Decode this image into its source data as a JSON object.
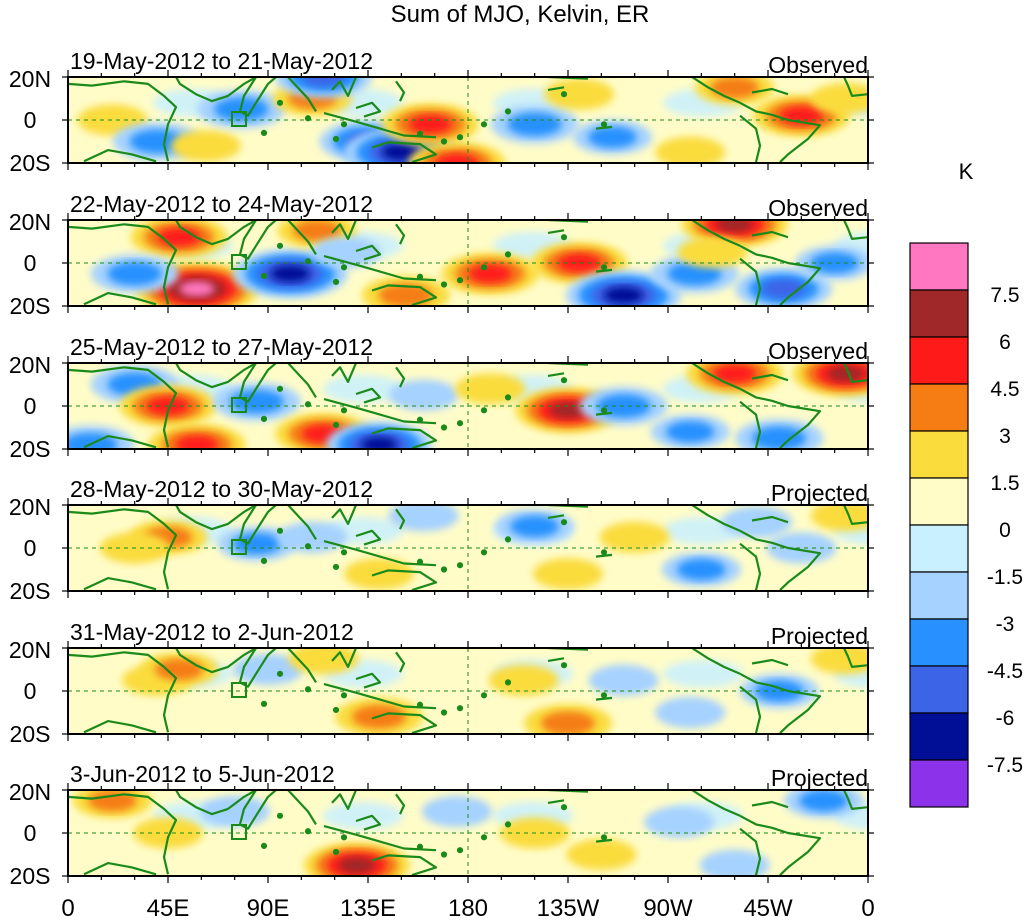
{
  "title": "Sum of MJO, Kelvin, ER",
  "colors": {
    "land": "#1a8a1a",
    "frame": "#000000",
    "refline": "#1a8a1a"
  },
  "axes": {
    "lat_ticks": [
      "20N",
      "0",
      "20S"
    ],
    "lon_ticks": [
      "0",
      "45E",
      "90E",
      "135E",
      "180",
      "135W",
      "90W",
      "45W",
      "0"
    ]
  },
  "panels": [
    {
      "date": "19-May-2012 to 21-May-2012",
      "status": "Observed"
    },
    {
      "date": "22-May-2012 to 24-May-2012",
      "status": "Observed"
    },
    {
      "date": "25-May-2012 to 27-May-2012",
      "status": "Observed"
    },
    {
      "date": "28-May-2012 to 30-May-2012",
      "status": "Projected"
    },
    {
      "date": "31-May-2012 to 2-Jun-2012",
      "status": "Projected"
    },
    {
      "date": "3-Jun-2012 to 5-Jun-2012",
      "status": "Projected"
    }
  ],
  "colorbar": {
    "unit": "K",
    "labels": [
      "7.5",
      "6",
      "4.5",
      "3",
      "1.5",
      "0",
      "-1.5",
      "-3",
      "-4.5",
      "-6",
      "-7.5"
    ],
    "colors": [
      "#ff77c0",
      "#a02828",
      "#ff1a1a",
      "#f57d14",
      "#fadc3c",
      "#fffcc8",
      "#c8f0ff",
      "#a6d2ff",
      "#2891ff",
      "#3c64e6",
      "#000f96",
      "#8c32eb"
    ]
  },
  "chart_data": {
    "type": "heatmap",
    "title": "Sum of MJO, Kelvin, ER",
    "unit": "K",
    "x_extent": [
      "0",
      "0"
    ],
    "y_extent": [
      "20S",
      "20N"
    ],
    "levels": [
      -7.5,
      -6,
      -4.5,
      -3,
      -1.5,
      0,
      1.5,
      3,
      4.5,
      6,
      7.5
    ],
    "anomalies": [
      [
        {
          "lon": 20,
          "lat": 0,
          "v": 2
        },
        {
          "lon": 40,
          "lat": -10,
          "v": -4
        },
        {
          "lon": 62,
          "lat": -12,
          "v": 2
        },
        {
          "lon": 78,
          "lat": 5,
          "v": -4
        },
        {
          "lon": 110,
          "lat": 10,
          "v": 3
        },
        {
          "lon": 115,
          "lat": 20,
          "v": -5
        },
        {
          "lon": 135,
          "lat": -10,
          "v": -5
        },
        {
          "lon": 150,
          "lat": -15,
          "v": -7
        },
        {
          "lon": 175,
          "lat": -20,
          "v": 5
        },
        {
          "lon": 163,
          "lat": -2,
          "v": 5
        },
        {
          "lon": 210,
          "lat": -2,
          "v": -4
        },
        {
          "lon": 230,
          "lat": 12,
          "v": 2
        },
        {
          "lon": 245,
          "lat": -8,
          "v": -3
        },
        {
          "lon": 300,
          "lat": 15,
          "v": 3
        },
        {
          "lon": 330,
          "lat": 2,
          "v": 5
        },
        {
          "lon": 350,
          "lat": 10,
          "v": 2
        },
        {
          "lon": 280,
          "lat": -15,
          "v": 2
        }
      ],
      [
        {
          "lon": 50,
          "lat": 12,
          "v": 5
        },
        {
          "lon": 58,
          "lat": -12,
          "v": 8
        },
        {
          "lon": 30,
          "lat": -5,
          "v": -4
        },
        {
          "lon": 100,
          "lat": -5,
          "v": -7
        },
        {
          "lon": 112,
          "lat": 15,
          "v": 3
        },
        {
          "lon": 125,
          "lat": 5,
          "v": -2
        },
        {
          "lon": 152,
          "lat": -15,
          "v": 4
        },
        {
          "lon": 190,
          "lat": -5,
          "v": 5
        },
        {
          "lon": 230,
          "lat": 0,
          "v": 5
        },
        {
          "lon": 250,
          "lat": -15,
          "v": -7
        },
        {
          "lon": 282,
          "lat": -5,
          "v": -4
        },
        {
          "lon": 300,
          "lat": 18,
          "v": 6
        },
        {
          "lon": 290,
          "lat": 5,
          "v": 2
        },
        {
          "lon": 322,
          "lat": -12,
          "v": -5
        },
        {
          "lon": 345,
          "lat": 0,
          "v": -3
        }
      ],
      [
        {
          "lon": 30,
          "lat": 10,
          "v": -4
        },
        {
          "lon": 45,
          "lat": 0,
          "v": 5
        },
        {
          "lon": 58,
          "lat": -18,
          "v": 5
        },
        {
          "lon": 85,
          "lat": 2,
          "v": -4
        },
        {
          "lon": 115,
          "lat": -13,
          "v": 5
        },
        {
          "lon": 140,
          "lat": -18,
          "v": -6
        },
        {
          "lon": 160,
          "lat": 5,
          "v": -2
        },
        {
          "lon": 190,
          "lat": 8,
          "v": 2
        },
        {
          "lon": 225,
          "lat": -2,
          "v": 6
        },
        {
          "lon": 250,
          "lat": 0,
          "v": -4
        },
        {
          "lon": 280,
          "lat": -12,
          "v": -3
        },
        {
          "lon": 300,
          "lat": 15,
          "v": 5
        },
        {
          "lon": 350,
          "lat": 15,
          "v": 6
        },
        {
          "lon": 320,
          "lat": -15,
          "v": -4
        },
        {
          "lon": 10,
          "lat": -18,
          "v": -4
        }
      ],
      [
        {
          "lon": 45,
          "lat": 5,
          "v": 3
        },
        {
          "lon": 30,
          "lat": 0,
          "v": 2
        },
        {
          "lon": 85,
          "lat": 2,
          "v": -3
        },
        {
          "lon": 110,
          "lat": 5,
          "v": -2
        },
        {
          "lon": 140,
          "lat": -12,
          "v": 2
        },
        {
          "lon": 160,
          "lat": 15,
          "v": -2
        },
        {
          "lon": 210,
          "lat": 10,
          "v": -3
        },
        {
          "lon": 225,
          "lat": -12,
          "v": 2
        },
        {
          "lon": 255,
          "lat": 5,
          "v": 2
        },
        {
          "lon": 285,
          "lat": -10,
          "v": -3
        },
        {
          "lon": 310,
          "lat": 12,
          "v": -2
        },
        {
          "lon": 330,
          "lat": 0,
          "v": -2
        },
        {
          "lon": 350,
          "lat": 15,
          "v": 2
        }
      ],
      [
        {
          "lon": 40,
          "lat": 5,
          "v": 2
        },
        {
          "lon": 50,
          "lat": 10,
          "v": 3
        },
        {
          "lon": 90,
          "lat": 10,
          "v": -2
        },
        {
          "lon": 115,
          "lat": 15,
          "v": 2
        },
        {
          "lon": 140,
          "lat": -12,
          "v": 4
        },
        {
          "lon": 205,
          "lat": 5,
          "v": 2
        },
        {
          "lon": 225,
          "lat": -15,
          "v": 4
        },
        {
          "lon": 250,
          "lat": 5,
          "v": -2
        },
        {
          "lon": 280,
          "lat": -10,
          "v": -2
        },
        {
          "lon": 320,
          "lat": 0,
          "v": -3
        },
        {
          "lon": 350,
          "lat": 15,
          "v": 2
        }
      ],
      [
        {
          "lon": 20,
          "lat": 15,
          "v": 3
        },
        {
          "lon": 45,
          "lat": 0,
          "v": 2
        },
        {
          "lon": 75,
          "lat": 10,
          "v": -2
        },
        {
          "lon": 130,
          "lat": -15,
          "v": 6
        },
        {
          "lon": 175,
          "lat": 10,
          "v": -2
        },
        {
          "lon": 210,
          "lat": 0,
          "v": 2
        },
        {
          "lon": 240,
          "lat": -10,
          "v": 2
        },
        {
          "lon": 275,
          "lat": 5,
          "v": -2
        },
        {
          "lon": 300,
          "lat": -15,
          "v": -2
        },
        {
          "lon": 340,
          "lat": 15,
          "v": -3
        }
      ]
    ]
  }
}
